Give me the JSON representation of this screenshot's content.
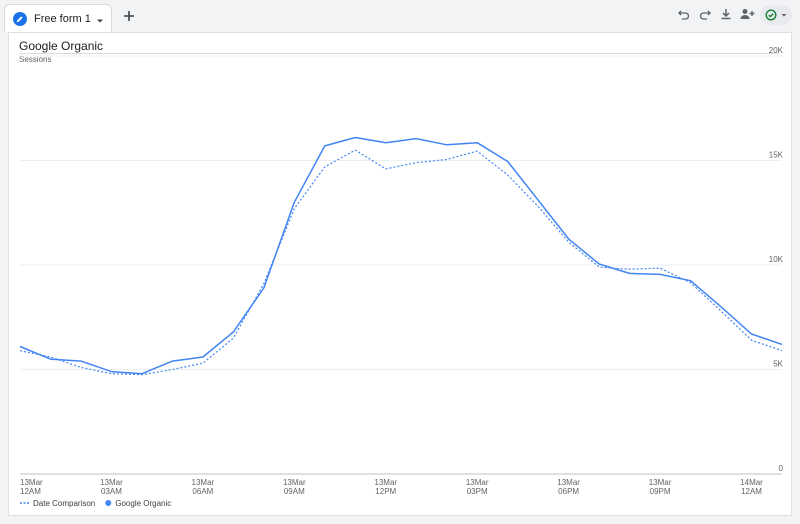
{
  "tab": {
    "label": "Free form 1"
  },
  "colors": {
    "accent": "#1a73e8",
    "series": "#4285f4",
    "status": "#188038"
  },
  "icons": {
    "tab": "pencil-icon",
    "caret": "caret-down-icon",
    "add": "plus-icon",
    "undo": "undo-icon",
    "redo": "redo-icon",
    "download": "download-icon",
    "share": "add-person-icon",
    "status": "check-circle-icon"
  },
  "chart_data": {
    "type": "line",
    "title": "Google Organic",
    "ylabel": "Sessions",
    "ylim": [
      0,
      20000
    ],
    "yticks": [
      "0",
      "5K",
      "10K",
      "15K",
      "20K"
    ],
    "grid": true,
    "legend": "bottom-left",
    "x_labels": [
      [
        "13Mar",
        "12AM"
      ],
      [
        "13Mar",
        "03AM"
      ],
      [
        "13Mar",
        "06AM"
      ],
      [
        "13Mar",
        "09AM"
      ],
      [
        "13Mar",
        "12PM"
      ],
      [
        "13Mar",
        "03PM"
      ],
      [
        "13Mar",
        "06PM"
      ],
      [
        "13Mar",
        "09PM"
      ],
      [
        "14Mar",
        "12AM"
      ]
    ],
    "series": [
      {
        "name": "Google Organic",
        "style": "solid",
        "values": [
          6100,
          5500,
          5400,
          4900,
          4800,
          5400,
          5600,
          6800,
          8900,
          13000,
          15700,
          16100,
          15850,
          16050,
          15750,
          15850,
          14950,
          13100,
          11250,
          10050,
          9600,
          9550,
          9250,
          8000,
          6700,
          6200
        ]
      },
      {
        "name": "Date Comparison",
        "style": "dotted",
        "values": [
          5900,
          5600,
          5100,
          4800,
          4750,
          5000,
          5300,
          6500,
          9100,
          12700,
          14700,
          15500,
          14600,
          14900,
          15050,
          15450,
          14300,
          12800,
          11100,
          9900,
          9800,
          9850,
          9150,
          7800,
          6400,
          5900
        ]
      }
    ],
    "legend_order": [
      "Date Comparison",
      "Google Organic"
    ]
  }
}
